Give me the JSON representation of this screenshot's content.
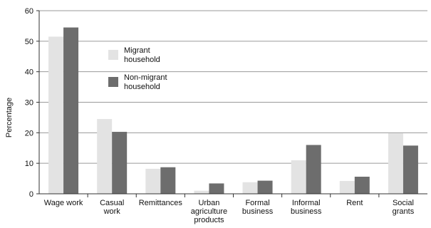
{
  "chart_data": {
    "type": "bar",
    "title": "",
    "xlabel": "",
    "ylabel": "Percentage",
    "ylim": [
      0,
      60
    ],
    "yticks": [
      0,
      10,
      20,
      30,
      40,
      50,
      60
    ],
    "grid": true,
    "legend_position": "top-left",
    "categories": [
      [
        "Wage work"
      ],
      [
        "Casual",
        "work"
      ],
      [
        "Remittances"
      ],
      [
        "Urban",
        "agriculture",
        "products"
      ],
      [
        "Formal",
        "business"
      ],
      [
        "Informal",
        "business"
      ],
      [
        "Rent"
      ],
      [
        "Social",
        "grants"
      ]
    ],
    "series": [
      {
        "name": [
          "Migrant",
          "household"
        ],
        "color": "#e3e3e3",
        "values": [
          51.5,
          24.5,
          8.2,
          1.0,
          3.8,
          11.0,
          4.2,
          19.8
        ]
      },
      {
        "name": [
          "Non-migrant",
          "household"
        ],
        "color": "#6d6d6d",
        "values": [
          54.5,
          20.3,
          8.7,
          3.4,
          4.3,
          16.0,
          5.6,
          15.8
        ]
      }
    ]
  }
}
